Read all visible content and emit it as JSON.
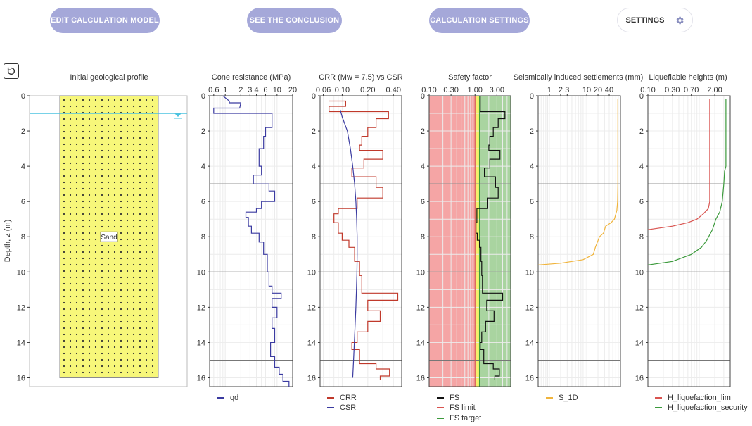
{
  "toolbar": {
    "edit_label": "EDIT CALCULATION MODEL",
    "conclusion_label": "SEE THE CONCLUSION",
    "calc_settings_label": "CALCULATION SETTINGS",
    "settings_label": "SETTINGS"
  },
  "colors": {
    "accent": "#a5a8d9",
    "sand": "#f7f77a",
    "water": "#4cc3e0",
    "qd": "#3a3aa0",
    "crr": "#c0392b",
    "csr": "#3a3aa0",
    "fs": "#111111",
    "fs_limit": "#d9534f",
    "fs_target": "#3c9a3c",
    "s1d": "#f0b43c",
    "h_lim": "#d9534f",
    "h_sec": "#3c9a3c",
    "red_zone": "#f5a5a5",
    "yellow_zone": "#f4f06c",
    "green_zone": "#a9d4a0"
  },
  "chart_data": [
    {
      "type": "geological-profile",
      "title": "Initial geological profile",
      "ylabel": "Depth, z (m)",
      "ylim": [
        0,
        16.5
      ],
      "yticks": [
        0,
        2,
        4,
        6,
        8,
        10,
        12,
        14,
        16
      ],
      "layers": [
        {
          "name": "Sand",
          "top": 0,
          "bottom": 16
        }
      ],
      "water_table": 1.0
    },
    {
      "type": "line",
      "title": "Cone resistance (MPa)",
      "xscale": "log",
      "xlim": [
        0.5,
        20
      ],
      "xticks": [
        0.6,
        1,
        2,
        3,
        4,
        6,
        10,
        20
      ],
      "series": [
        {
          "name": "qd",
          "points": [
            [
              0.9,
              0
            ],
            [
              1.2,
              0.3
            ],
            [
              1.2,
              0.4
            ],
            [
              2.0,
              0.4
            ],
            [
              1.9,
              0.7
            ],
            [
              0.6,
              0.7
            ],
            [
              0.6,
              1.0
            ],
            [
              8,
              1.0
            ],
            [
              8,
              1.8
            ],
            [
              6,
              1.8
            ],
            [
              6,
              2.3
            ],
            [
              5.5,
              2.3
            ],
            [
              5.5,
              3.0
            ],
            [
              4.5,
              3.0
            ],
            [
              4.5,
              4.0
            ],
            [
              5,
              4.0
            ],
            [
              5,
              4.5
            ],
            [
              3.5,
              4.5
            ],
            [
              3.5,
              5.0
            ],
            [
              7,
              5.0
            ],
            [
              7,
              5.4
            ],
            [
              9,
              5.4
            ],
            [
              9,
              6.0
            ],
            [
              5,
              6.0
            ],
            [
              5,
              6.4
            ],
            [
              4,
              6.4
            ],
            [
              4,
              6.6
            ],
            [
              2.5,
              6.6
            ],
            [
              2.5,
              6.9
            ],
            [
              2.8,
              6.9
            ],
            [
              2.8,
              7.4
            ],
            [
              3.2,
              7.4
            ],
            [
              3.2,
              7.8
            ],
            [
              4.5,
              7.8
            ],
            [
              4.5,
              8.3
            ],
            [
              5.5,
              8.3
            ],
            [
              5.5,
              9.0
            ],
            [
              6.5,
              9.0
            ],
            [
              6.5,
              10.0
            ],
            [
              7,
              10.0
            ],
            [
              7,
              10.8
            ],
            [
              8,
              10.8
            ],
            [
              8,
              11.2
            ],
            [
              12,
              11.2
            ],
            [
              12,
              11.5
            ],
            [
              8,
              11.5
            ],
            [
              8,
              12.0
            ],
            [
              10,
              12.0
            ],
            [
              10,
              12.6
            ],
            [
              8,
              12.6
            ],
            [
              8,
              13.2
            ],
            [
              9,
              13.2
            ],
            [
              9,
              14.0
            ],
            [
              7.5,
              14.0
            ],
            [
              7.5,
              14.8
            ],
            [
              9,
              14.8
            ],
            [
              9,
              15.4
            ],
            [
              11,
              15.4
            ],
            [
              11,
              15.8
            ],
            [
              13,
              15.8
            ],
            [
              13,
              16.2
            ],
            [
              17,
              16.2
            ],
            [
              17,
              16.5
            ]
          ]
        }
      ]
    },
    {
      "type": "line",
      "title": "CRR (Mw = 7.5) vs CSR",
      "xscale": "log",
      "xlim": [
        0.055,
        0.5
      ],
      "xticks": [
        0.06,
        0.1,
        0.2,
        0.4
      ],
      "xtick_labels": [
        "0.06",
        "0.10",
        "0.20",
        "0.40"
      ],
      "series": [
        {
          "name": "CRR",
          "points": [
            [
              0.07,
              0.3
            ],
            [
              0.11,
              0.3
            ],
            [
              0.11,
              0.6
            ],
            [
              0.07,
              0.6
            ],
            [
              0.07,
              0.9
            ],
            [
              0.35,
              0.9
            ],
            [
              0.35,
              1.3
            ],
            [
              0.25,
              1.3
            ],
            [
              0.25,
              1.8
            ],
            [
              0.2,
              1.8
            ],
            [
              0.2,
              2.3
            ],
            [
              0.17,
              2.3
            ],
            [
              0.17,
              2.8
            ],
            [
              0.16,
              2.8
            ],
            [
              0.16,
              3.1
            ],
            [
              0.3,
              3.1
            ],
            [
              0.3,
              3.6
            ],
            [
              0.18,
              3.6
            ],
            [
              0.18,
              4.1
            ],
            [
              0.13,
              4.1
            ],
            [
              0.13,
              4.6
            ],
            [
              0.25,
              4.6
            ],
            [
              0.25,
              5.2
            ],
            [
              0.3,
              5.2
            ],
            [
              0.3,
              5.8
            ],
            [
              0.15,
              5.8
            ],
            [
              0.15,
              6.4
            ],
            [
              0.09,
              6.4
            ],
            [
              0.09,
              6.7
            ],
            [
              0.08,
              6.7
            ],
            [
              0.08,
              7.2
            ],
            [
              0.09,
              7.2
            ],
            [
              0.09,
              7.8
            ],
            [
              0.1,
              7.8
            ],
            [
              0.1,
              8.2
            ],
            [
              0.12,
              8.2
            ],
            [
              0.12,
              8.6
            ],
            [
              0.14,
              8.6
            ],
            [
              0.14,
              9.4
            ],
            [
              0.16,
              9.4
            ],
            [
              0.16,
              10.2
            ],
            [
              0.17,
              10.2
            ],
            [
              0.17,
              11.2
            ],
            [
              0.45,
              11.2
            ],
            [
              0.45,
              11.6
            ],
            [
              0.2,
              11.6
            ],
            [
              0.2,
              12.2
            ],
            [
              0.28,
              12.2
            ],
            [
              0.28,
              12.8
            ],
            [
              0.2,
              12.8
            ],
            [
              0.2,
              13.4
            ],
            [
              0.15,
              13.4
            ],
            [
              0.15,
              14.0
            ],
            [
              0.13,
              14.0
            ],
            [
              0.13,
              14.4
            ],
            [
              0.16,
              14.4
            ],
            [
              0.16,
              15.2
            ],
            [
              0.25,
              15.2
            ],
            [
              0.25,
              15.5
            ],
            [
              0.36,
              15.5
            ],
            [
              0.36,
              15.9
            ],
            [
              0.28,
              15.9
            ],
            [
              0.28,
              16.1
            ]
          ]
        },
        {
          "name": "CSR",
          "points": [
            [
              0.095,
              0.8
            ],
            [
              0.1,
              1.2
            ],
            [
              0.115,
              2
            ],
            [
              0.125,
              3
            ],
            [
              0.133,
              4
            ],
            [
              0.14,
              5
            ],
            [
              0.145,
              6
            ],
            [
              0.148,
              7
            ],
            [
              0.15,
              8
            ],
            [
              0.15,
              9
            ],
            [
              0.149,
              10
            ],
            [
              0.147,
              11
            ],
            [
              0.145,
              12
            ],
            [
              0.142,
              13
            ],
            [
              0.139,
              14
            ],
            [
              0.136,
              15
            ],
            [
              0.133,
              16
            ]
          ]
        }
      ]
    },
    {
      "type": "line",
      "title": "Safety factor",
      "xscale": "log",
      "xlim": [
        0.1,
        6
      ],
      "xticks": [
        0.1,
        0.3,
        1,
        3
      ],
      "xtick_labels": [
        "0.10",
        "0.30",
        "1.00",
        "3.00"
      ],
      "zones": [
        {
          "name": "red",
          "from": 0.1,
          "to": 1.0
        },
        {
          "name": "yellow",
          "from": 1.0,
          "to": 1.25
        },
        {
          "name": "green",
          "from": 1.25,
          "to": 6
        }
      ],
      "fs_limit": 1.0,
      "fs_target": 1.25,
      "series": [
        {
          "name": "FS",
          "points": [
            [
              1.3,
              0
            ],
            [
              1.3,
              0.9
            ],
            [
              4.5,
              0.9
            ],
            [
              4.5,
              1.3
            ],
            [
              3.2,
              1.3
            ],
            [
              3.2,
              1.8
            ],
            [
              2.5,
              1.8
            ],
            [
              2.5,
              2.3
            ],
            [
              2.1,
              2.3
            ],
            [
              2.1,
              2.8
            ],
            [
              2.0,
              2.8
            ],
            [
              2.0,
              3.1
            ],
            [
              3.5,
              3.1
            ],
            [
              3.5,
              3.6
            ],
            [
              2.1,
              3.6
            ],
            [
              2.1,
              4.1
            ],
            [
              1.6,
              4.1
            ],
            [
              1.6,
              4.6
            ],
            [
              2.8,
              4.6
            ],
            [
              2.8,
              5.2
            ],
            [
              3.2,
              5.2
            ],
            [
              3.2,
              5.8
            ],
            [
              1.9,
              5.8
            ],
            [
              1.9,
              6.4
            ],
            [
              1.1,
              6.4
            ],
            [
              1.1,
              7.2
            ],
            [
              1.05,
              7.2
            ],
            [
              1.05,
              7.8
            ],
            [
              1.12,
              7.8
            ],
            [
              1.12,
              8.2
            ],
            [
              1.25,
              8.2
            ],
            [
              1.25,
              8.6
            ],
            [
              1.35,
              8.6
            ],
            [
              1.35,
              9.4
            ],
            [
              1.4,
              9.4
            ],
            [
              1.4,
              10.2
            ],
            [
              1.45,
              10.2
            ],
            [
              1.45,
              11.2
            ],
            [
              4.0,
              11.2
            ],
            [
              4.0,
              11.6
            ],
            [
              1.8,
              11.6
            ],
            [
              1.8,
              12.2
            ],
            [
              2.6,
              12.2
            ],
            [
              2.6,
              12.8
            ],
            [
              1.7,
              12.8
            ],
            [
              1.7,
              13.4
            ],
            [
              1.4,
              13.4
            ],
            [
              1.4,
              14.0
            ],
            [
              1.3,
              14.0
            ],
            [
              1.3,
              14.4
            ],
            [
              1.55,
              14.4
            ],
            [
              1.55,
              15.2
            ],
            [
              2.5,
              15.2
            ],
            [
              2.5,
              15.5
            ],
            [
              3.4,
              15.5
            ],
            [
              3.4,
              15.9
            ],
            [
              2.7,
              15.9
            ],
            [
              2.7,
              16.1
            ]
          ]
        }
      ],
      "legend": [
        "FS",
        "FS limit",
        "FS target"
      ]
    },
    {
      "type": "line",
      "title": "Seismically induced settlements (mm)",
      "xscale": "log",
      "xlim": [
        0.5,
        80
      ],
      "xticks": [
        1,
        2,
        3,
        10,
        20,
        40
      ],
      "series": [
        {
          "name": "S_1D",
          "points": [
            [
              68,
              0.2
            ],
            [
              68,
              5.0
            ],
            [
              67,
              6.0
            ],
            [
              64,
              6.5
            ],
            [
              55,
              7.0
            ],
            [
              45,
              7.2
            ],
            [
              32,
              7.4
            ],
            [
              28,
              7.8
            ],
            [
              22,
              8.0
            ],
            [
              17,
              8.6
            ],
            [
              15,
              9.0
            ],
            [
              8,
              9.3
            ],
            [
              4,
              9.4
            ],
            [
              2,
              9.5
            ],
            [
              0.5,
              9.6
            ]
          ]
        }
      ]
    },
    {
      "type": "line",
      "title": "Liquefiable heights (m)",
      "xscale": "log",
      "xlim": [
        0.1,
        4
      ],
      "xticks": [
        0.1,
        0.3,
        0.7,
        2
      ],
      "xtick_labels": [
        "0.10",
        "0.30",
        "0.70",
        "2.00"
      ],
      "series": [
        {
          "name": "H_liquefaction_lim",
          "points": [
            [
              1.6,
              0.2
            ],
            [
              1.6,
              6.0
            ],
            [
              1.5,
              6.4
            ],
            [
              1.2,
              6.7
            ],
            [
              0.9,
              7.0
            ],
            [
              0.6,
              7.2
            ],
            [
              0.3,
              7.4
            ],
            [
              0.1,
              7.6
            ]
          ]
        },
        {
          "name": "H_liquefaction_security",
          "points": [
            [
              3.3,
              0.2
            ],
            [
              3.3,
              4.0
            ],
            [
              3.1,
              4.3
            ],
            [
              3.0,
              5.0
            ],
            [
              2.8,
              6.0
            ],
            [
              2.5,
              6.6
            ],
            [
              2.1,
              7.0
            ],
            [
              1.8,
              7.6
            ],
            [
              1.4,
              8.2
            ],
            [
              1.1,
              8.6
            ],
            [
              0.7,
              9.0
            ],
            [
              0.3,
              9.4
            ],
            [
              0.1,
              9.6
            ]
          ]
        }
      ]
    }
  ]
}
